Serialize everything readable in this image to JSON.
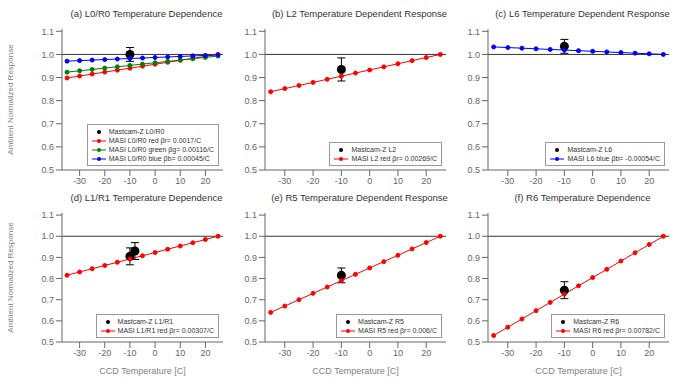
{
  "chart_data": [
    {
      "type": "scatter",
      "title": "(a) L0/R0 Temperature Dependence",
      "ylabel": "Ambient Normalized Response",
      "xlim": [
        -37,
        27
      ],
      "xticks": [
        -30,
        -20,
        -10,
        0,
        10,
        20
      ],
      "ylim": [
        0.5,
        1.11
      ],
      "yticks": [
        0.5,
        0.6,
        0.7,
        0.8,
        0.9,
        {
          "value": 1.0,
          "label": "1.0"
        },
        1.1
      ],
      "hline": 1.0,
      "grid": false,
      "legend": "lower right",
      "series": [
        {
          "name": "Mastcam-Z L0/R0",
          "color": "black",
          "marker": "o",
          "x": [
            -10
          ],
          "values": [
            1.0
          ],
          "yerr": 0.03
        },
        {
          "name": "MASI L0/R0 red βr= 0.0017/C",
          "color": "red",
          "type": "line",
          "marker": "o",
          "line_style": "solid",
          "x": [
            -35,
            -30,
            -25,
            -20,
            -15,
            -10,
            -5,
            0,
            5,
            10,
            15,
            20,
            25
          ],
          "values": [
            0.898,
            0.9065,
            0.915,
            0.9235,
            0.932,
            0.9405,
            0.949,
            0.9575,
            0.966,
            0.9745,
            0.983,
            0.9915,
            1.0
          ]
        },
        {
          "name": "MASI L0/R0 green βg= 0.00116/C",
          "color": "green",
          "type": "line",
          "marker": "o",
          "line_style": "solid",
          "x": [
            -35,
            -30,
            -25,
            -20,
            -15,
            -10,
            -5,
            0,
            5,
            10,
            15,
            20,
            25
          ],
          "values": [
            0.9234,
            0.9292,
            0.935,
            0.9408,
            0.9466,
            0.9524,
            0.9582,
            0.964,
            0.9698,
            0.9756,
            0.9814,
            0.9872,
            0.993
          ]
        },
        {
          "name": "MASI L0/R0 blue βb= 0.00045/C",
          "color": "blue",
          "type": "line",
          "marker": "o",
          "line_style": "solid",
          "x": [
            -35,
            -30,
            -25,
            -20,
            -15,
            -10,
            -5,
            0,
            5,
            10,
            15,
            20,
            25
          ],
          "values": [
            0.971,
            0.97325,
            0.9755,
            0.97775,
            0.98,
            0.98225,
            0.9845,
            0.98675,
            0.989,
            0.99125,
            0.9935,
            0.99575,
            0.998
          ]
        }
      ]
    },
    {
      "type": "scatter",
      "title": "(b) L2 Temperature Dependent Response",
      "xlim": [
        -37,
        27
      ],
      "xticks": [
        -30,
        -20,
        -10,
        0,
        10,
        20
      ],
      "ylim": [
        0.5,
        1.11
      ],
      "yticks": [
        0.5,
        0.6,
        0.7,
        0.8,
        0.9,
        {
          "value": 1.0,
          "label": "1.0"
        },
        1.1
      ],
      "hline": 1.0,
      "grid": false,
      "legend": "lower right",
      "series": [
        {
          "name": "Mastcam-Z L2",
          "color": "black",
          "marker": "o",
          "x": [
            -10
          ],
          "values": [
            0.935
          ],
          "yerr": 0.05
        },
        {
          "name": "MASI L2 red βr= 0.00269/C",
          "color": "red",
          "type": "line",
          "marker": "o",
          "line_style": "solid",
          "x": [
            -35,
            -30,
            -25,
            -20,
            -15,
            -10,
            -5,
            0,
            5,
            10,
            15,
            20,
            25
          ],
          "values": [
            0.8386,
            0.85205,
            0.8655,
            0.87895,
            0.8924,
            0.90585,
            0.9193,
            0.93275,
            0.9462,
            0.95965,
            0.9731,
            0.98655,
            1.0
          ]
        }
      ]
    },
    {
      "type": "scatter",
      "title": "(c) L6 Temperature Dependent Response",
      "xlim": [
        -37,
        27
      ],
      "xticks": [
        -30,
        -20,
        -10,
        0,
        10,
        20
      ],
      "ylim": [
        0.5,
        1.11
      ],
      "yticks": [
        0.5,
        0.6,
        0.7,
        0.8,
        0.9,
        {
          "value": 1.0,
          "label": "1.0"
        },
        1.1
      ],
      "hline": 1.0,
      "grid": false,
      "legend": "lower right",
      "series": [
        {
          "name": "Mastcam-Z L6",
          "color": "black",
          "marker": "o",
          "x": [
            -10
          ],
          "values": [
            1.035
          ],
          "yerr": 0.03
        },
        {
          "name": "MASI L6 blue βb= -0.00054/C",
          "color": "blue",
          "type": "line",
          "marker": "o",
          "line_style": "solid",
          "x": [
            -35,
            -30,
            -25,
            -20,
            -15,
            -10,
            -5,
            0,
            5,
            10,
            15,
            20,
            25
          ],
          "values": [
            1.0324,
            1.0297,
            1.027,
            1.0243,
            1.0216,
            1.0189,
            1.0162,
            1.0135,
            1.0108,
            1.0081,
            1.0054,
            1.0027,
            1.0
          ]
        }
      ]
    },
    {
      "type": "scatter",
      "title": "(d) L1/R1 Temperature Dependence",
      "xlabel": "CCD Temperature [C]",
      "ylabel": "Ambient Normalized Response",
      "xlim": [
        -37,
        27
      ],
      "xticks": [
        -30,
        -20,
        -10,
        0,
        10,
        20
      ],
      "ylim": [
        0.5,
        1.11
      ],
      "yticks": [
        0.5,
        0.6,
        0.7,
        0.8,
        0.9,
        {
          "value": 1.0,
          "label": "1.0"
        },
        1.1
      ],
      "hline": 1.0,
      "grid": false,
      "legend": "lower right",
      "series": [
        {
          "name": "Mastcam-Z L1/R1",
          "color": "black",
          "marker": "o",
          "x": [
            -10,
            -8
          ],
          "values": [
            0.905,
            0.93
          ],
          "yerr": 0.04
        },
        {
          "name": "MASI L1/R1 red βr= 0.00307/C",
          "color": "red",
          "type": "line",
          "marker": "o",
          "line_style": "solid",
          "x": [
            -35,
            -30,
            -25,
            -20,
            -15,
            -10,
            -5,
            0,
            5,
            10,
            15,
            20,
            25
          ],
          "values": [
            0.8158,
            0.83115,
            0.8465,
            0.86185,
            0.8772,
            0.89255,
            0.9079,
            0.92325,
            0.9386,
            0.95395,
            0.9693,
            0.98465,
            1.0
          ]
        }
      ]
    },
    {
      "type": "scatter",
      "title": "(e) R5 Temperature Dependent Response",
      "xlabel": "CCD Temperature [C]",
      "xlim": [
        -37,
        27
      ],
      "xticks": [
        -30,
        -20,
        -10,
        0,
        10,
        20
      ],
      "ylim": [
        0.5,
        1.11
      ],
      "yticks": [
        0.5,
        0.6,
        0.7,
        0.8,
        0.9,
        {
          "value": 1.0,
          "label": "1.0"
        },
        1.1
      ],
      "hline": 1.0,
      "grid": false,
      "legend": "lower right",
      "series": [
        {
          "name": "Mastcam-Z R5",
          "color": "black",
          "marker": "o",
          "x": [
            -10
          ],
          "values": [
            0.815
          ],
          "yerr": 0.035
        },
        {
          "name": "MASI R5 red βr= 0.006/C",
          "color": "red",
          "type": "line",
          "marker": "o",
          "line_style": "solid",
          "x": [
            -35,
            -30,
            -25,
            -20,
            -15,
            -10,
            -5,
            0,
            5,
            10,
            15,
            20,
            25
          ],
          "values": [
            0.64,
            0.67,
            0.7,
            0.73,
            0.76,
            0.79,
            0.82,
            0.85,
            0.88,
            0.91,
            0.94,
            0.97,
            1.0
          ]
        }
      ]
    },
    {
      "type": "scatter",
      "title": "(f) R6 Temperature Dependence",
      "xlabel": "CCD Temperature [C]",
      "xlim": [
        -37,
        27
      ],
      "xticks": [
        -30,
        -20,
        -10,
        0,
        10,
        20
      ],
      "ylim": [
        0.5,
        1.11
      ],
      "yticks": [
        0.5,
        0.6,
        0.7,
        0.8,
        0.9,
        {
          "value": 1.0,
          "label": "1.0"
        },
        1.1
      ],
      "hline": 1.0,
      "grid": false,
      "legend": "lower right",
      "series": [
        {
          "name": "Mastcam-Z R6",
          "color": "black",
          "marker": "o",
          "x": [
            -10
          ],
          "values": [
            0.745
          ],
          "yerr": 0.04
        },
        {
          "name": "MASI R6 red βr= 0.00782/C",
          "color": "red",
          "type": "line",
          "marker": "o",
          "line_style": "solid",
          "x": [
            -35,
            -30,
            -25,
            -20,
            -15,
            -10,
            -5,
            0,
            5,
            10,
            15,
            20,
            25
          ],
          "values": [
            0.5308,
            0.5699,
            0.609,
            0.6481,
            0.6872,
            0.7263,
            0.7654,
            0.8045,
            0.8436,
            0.8827,
            0.9218,
            0.9609,
            1.0
          ]
        }
      ]
    }
  ]
}
